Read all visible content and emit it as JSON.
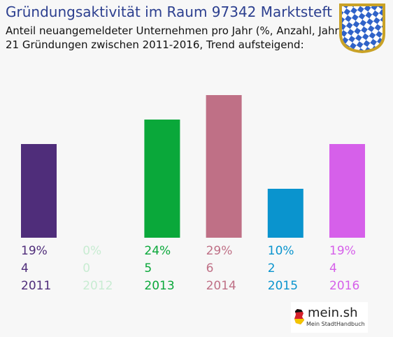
{
  "header": {
    "title": "Gründungsaktivität im Raum 97342 Marktsteft",
    "subtitle1": "Anteil neuangemeldeter Unternehmen pro Jahr (%, Anzahl, Jahr)",
    "subtitle2": "21 Gründungen zwischen 2011-2016, Trend aufsteigend:"
  },
  "brand": {
    "name": "mein.sh",
    "tagline": "Mein StadtHandbuch"
  },
  "crest_colors": {
    "blue": "#2f62c8",
    "white": "#ffffff",
    "gold": "#c9a227"
  },
  "chart_data": {
    "type": "bar",
    "categories": [
      "2011",
      "2012",
      "2013",
      "2014",
      "2015",
      "2016"
    ],
    "values": [
      19,
      0,
      24,
      29,
      10,
      19
    ],
    "percent_labels": [
      "19%",
      "0%",
      "24%",
      "29%",
      "10%",
      "19%"
    ],
    "counts": [
      "4",
      "0",
      "5",
      "6",
      "2",
      "4"
    ],
    "colors": [
      "#4f2d7a",
      "#c8ecd2",
      "#0aa83a",
      "#bf7086",
      "#0a94ce",
      "#d660ea"
    ],
    "ylim": [
      0,
      29
    ],
    "grid": false,
    "legend": "none"
  }
}
